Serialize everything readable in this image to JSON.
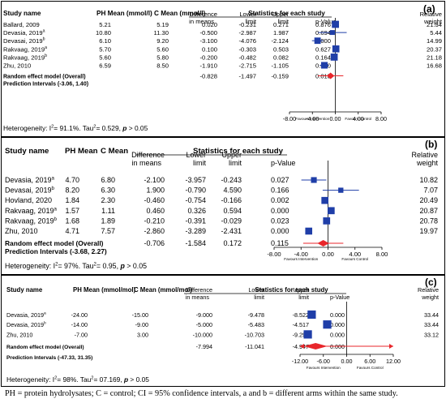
{
  "footnote": "PH = protein hydrolysates; C = control; CI = 95% confidence intervals, a and b = different arms within the same study.",
  "colors": {
    "square": "#1f3ea8",
    "diamond": "#e8262b",
    "line": "#1f3ea8",
    "axis": "#000000"
  },
  "chart_data": [
    {
      "type": "forest",
      "panel_label": "(a)",
      "headers": {
        "study": "Study name",
        "ph": "PH Mean (mmol/l)",
        "c": "C Mean (mmol/l)",
        "stats": "Statistics for each study",
        "diff": [
          "Difference",
          "in means"
        ],
        "lower": [
          "Lower",
          "limit"
        ],
        "upper": [
          "Upper",
          "limit"
        ],
        "p": "p-Value",
        "weight": [
          "Relative",
          "weight"
        ]
      },
      "rows": [
        {
          "study": "Ballard, 2009",
          "sup": "",
          "ph": "5.21",
          "c": "5.19",
          "diff": "0.020",
          "lower": "-0.231",
          "upper": "0.271",
          "p": "0.876",
          "weight": "21.34",
          "diff_v": 0.02,
          "lower_v": -0.231,
          "upper_v": 0.271,
          "weight_v": 21.34
        },
        {
          "study": "Devasia, 2019",
          "sup": "a",
          "ph": "10.80",
          "c": "11.30",
          "diff": "-0.500",
          "lower": "-2.987",
          "upper": "1.987",
          "p": "0.694",
          "weight": "5.44",
          "diff_v": -0.5,
          "lower_v": -2.987,
          "upper_v": 1.987,
          "weight_v": 5.44
        },
        {
          "study": "Devasai, 2019",
          "sup": "b",
          "ph": "6.10",
          "c": "9.20",
          "diff": "-3.100",
          "lower": "-4.076",
          "upper": "-2.124",
          "p": "0.000",
          "weight": "14.99",
          "diff_v": -3.1,
          "lower_v": -4.076,
          "upper_v": -2.124,
          "weight_v": 14.99
        },
        {
          "study": "Rakvaag, 2019",
          "sup": "a",
          "ph": "5.70",
          "c": "5.60",
          "diff": "0.100",
          "lower": "-0.303",
          "upper": "0.503",
          "p": "0.627",
          "weight": "20.37",
          "diff_v": 0.1,
          "lower_v": -0.303,
          "upper_v": 0.503,
          "weight_v": 20.37
        },
        {
          "study": "Rakvaag, 2019",
          "sup": "b",
          "ph": "5.60",
          "c": "5.80",
          "diff": "-0.200",
          "lower": "-0.482",
          "upper": "0.082",
          "p": "0.164",
          "weight": "21.18",
          "diff_v": -0.2,
          "lower_v": -0.482,
          "upper_v": 0.082,
          "weight_v": 21.18
        },
        {
          "study": "Zhu, 2010",
          "sup": "",
          "ph": "6.59",
          "c": "8.50",
          "diff": "-1.910",
          "lower": "-2.715",
          "upper": "-1.105",
          "p": "0.000",
          "weight": "16.68",
          "diff_v": -1.91,
          "lower_v": -2.715,
          "upper_v": -1.105,
          "weight_v": 16.68
        }
      ],
      "overall": {
        "label": "Random effect model (Overall)",
        "diff": "-0.828",
        "lower": "-1.497",
        "upper": "-0.159",
        "p": "0.015",
        "diff_v": -0.828,
        "lower_v": -1.497,
        "upper_v": -0.159
      },
      "prediction": {
        "label": "Prediction Intervals (-3.06, 1.40)",
        "lower_v": -3.06,
        "upper_v": 1.4
      },
      "axis": {
        "min": -8,
        "max": 8,
        "ticks": [
          "-8.00",
          "-4.00",
          "0.00",
          "4.00",
          "8.00"
        ],
        "tick_values": [
          -8,
          -4,
          0,
          4,
          8
        ]
      },
      "favours": {
        "left": "Favours Intervention",
        "right": "Favours Control"
      },
      "heterogeneity": {
        "prefix": "Heterogeneity: I",
        "mid": "= 91.1%. Tau",
        "p_text": "= 0.529, ",
        "p_var": "p",
        "p_suffix": " > 0.05"
      }
    },
    {
      "type": "forest",
      "panel_label": "(b)",
      "headers": {
        "study": "Study name",
        "ph": "PH Mean",
        "c": "C Mean",
        "stats": "Statistics for each study",
        "diff": [
          "Difference",
          "in means"
        ],
        "lower": [
          "Lower",
          "limit"
        ],
        "upper": [
          "Upper",
          "limit"
        ],
        "p": "p-Value",
        "weight": [
          "Relative",
          "weight"
        ]
      },
      "rows": [
        {
          "study": "Devasia, 2019",
          "sup": "a",
          "ph": "4.70",
          "c": "6.80",
          "diff": "-2.100",
          "lower": "-3.957",
          "upper": "-0.243",
          "p": "0.027",
          "weight": "10.82",
          "diff_v": -2.1,
          "lower_v": -3.957,
          "upper_v": -0.243,
          "weight_v": 10.82
        },
        {
          "study": "Devasai, 2019",
          "sup": "b",
          "ph": "8.20",
          "c": "6.30",
          "diff": "1.900",
          "lower": "-0.790",
          "upper": "4.590",
          "p": "0.166",
          "weight": "7.07",
          "diff_v": 1.9,
          "lower_v": -0.79,
          "upper_v": 4.59,
          "weight_v": 7.07
        },
        {
          "study": "Hovland, 2020",
          "sup": "",
          "ph": "1.84",
          "c": "2.30",
          "diff": "-0.460",
          "lower": "-0.754",
          "upper": "-0.166",
          "p": "0.002",
          "weight": "20.49",
          "diff_v": -0.46,
          "lower_v": -0.754,
          "upper_v": -0.166,
          "weight_v": 20.49
        },
        {
          "study": "Rakvaag, 2019",
          "sup": "a",
          "ph": "1.57",
          "c": "1.11",
          "diff": "0.460",
          "lower": "0.326",
          "upper": "0.594",
          "p": "0.000",
          "weight": "20.87",
          "diff_v": 0.46,
          "lower_v": 0.326,
          "upper_v": 0.594,
          "weight_v": 20.87
        },
        {
          "study": "Rakvaag, 2019",
          "sup": "b",
          "ph": "1.68",
          "c": "1.89",
          "diff": "-0.210",
          "lower": "-0.391",
          "upper": "-0.029",
          "p": "0.023",
          "weight": "20.78",
          "diff_v": -0.21,
          "lower_v": -0.391,
          "upper_v": -0.029,
          "weight_v": 20.78
        },
        {
          "study": "Zhu, 2010",
          "sup": "",
          "ph": "4.71",
          "c": "7.57",
          "diff": "-2.860",
          "lower": "-3.289",
          "upper": "-2.431",
          "p": "0.000",
          "weight": "19.97",
          "diff_v": -2.86,
          "lower_v": -3.289,
          "upper_v": -2.431,
          "weight_v": 19.97
        }
      ],
      "overall": {
        "label": "Random effect model (Overall)",
        "diff": "-0.706",
        "lower": "-1.584",
        "upper": "0.172",
        "p": "0.115",
        "diff_v": -0.706,
        "lower_v": -1.584,
        "upper_v": 0.172
      },
      "prediction": {
        "label": "Prediction Intervals (-3.68, 2.27)",
        "lower_v": -3.68,
        "upper_v": 2.27
      },
      "axis": {
        "min": -8,
        "max": 8,
        "ticks": [
          "-8.00",
          "-4.00",
          "0.00",
          "4.00",
          "8.00"
        ],
        "tick_values": [
          -8,
          -4,
          0,
          4,
          8
        ]
      },
      "favours": {
        "left": "Favours Intervention",
        "right": "Favours Control"
      },
      "heterogeneity": {
        "prefix": "Heterogeneity: I",
        "mid": "= 97%. Tau",
        "p_text": "= 0.95, ",
        "p_var": "p",
        "p_suffix": " > 0.05"
      }
    },
    {
      "type": "forest",
      "panel_label": "(c)",
      "headers": {
        "study": "Study name",
        "ph": "PH Mean (mmol/mol)",
        "c": "C Mean (mmol/mol)",
        "stats": "Statistics for each study",
        "diff": [
          "Difference",
          "in means"
        ],
        "lower": [
          "Lower",
          "limit"
        ],
        "upper": [
          "Upper",
          "limit"
        ],
        "p": "p-Value",
        "weight": [
          "Relative",
          "weight"
        ]
      },
      "rows": [
        {
          "study": "Devasia, 2019",
          "sup": "a",
          "ph": "-24.00",
          "c": "-15.00",
          "diff": "-9.000",
          "lower": "-9.478",
          "upper": "-8.522",
          "p": "0.000",
          "weight": "33.44",
          "diff_v": -9.0,
          "lower_v": -9.478,
          "upper_v": -8.522,
          "weight_v": 33.44
        },
        {
          "study": "Devasia, 2019",
          "sup": "b",
          "ph": "-14.00",
          "c": "-9.00",
          "diff": "-5.000",
          "lower": "-5.483",
          "upper": "-4.517",
          "p": "0.000",
          "weight": "33.44",
          "diff_v": -5.0,
          "lower_v": -5.483,
          "upper_v": -4.517,
          "weight_v": 33.44
        },
        {
          "study": "Zhu, 2010",
          "sup": "",
          "ph": "-7.00",
          "c": "3.00",
          "diff": "-10.000",
          "lower": "-10.703",
          "upper": "-9.297",
          "p": "0.000",
          "weight": "33.12",
          "diff_v": -10.0,
          "lower_v": -10.703,
          "upper_v": -9.297,
          "weight_v": 33.12
        }
      ],
      "overall": {
        "label": "Random effect model (Overall)",
        "diff": "-7.994",
        "lower": "-11.041",
        "upper": "-4.947",
        "p": "0.000",
        "diff_v": -7.994,
        "lower_v": -11.041,
        "upper_v": -4.947
      },
      "prediction": {
        "label": "Prediction Intervals (-47.33, 31.35)",
        "lower_v": -47.33,
        "upper_v": 31.35
      },
      "axis": {
        "min": -12,
        "max": 12,
        "ticks": [
          "-12.00",
          "-6.00",
          "0.00",
          "6.00",
          "12.00"
        ],
        "tick_values": [
          -12,
          -6,
          0,
          6,
          12
        ]
      },
      "favours": {
        "left": "Favours Intervention",
        "right": "Favours Control"
      },
      "heterogeneity": {
        "prefix": "Heterogeneity: I",
        "mid": "= 98%. Tau",
        "p_text": "= 07.169, ",
        "p_var": "p",
        "p_suffix": " > 0.05"
      }
    }
  ]
}
